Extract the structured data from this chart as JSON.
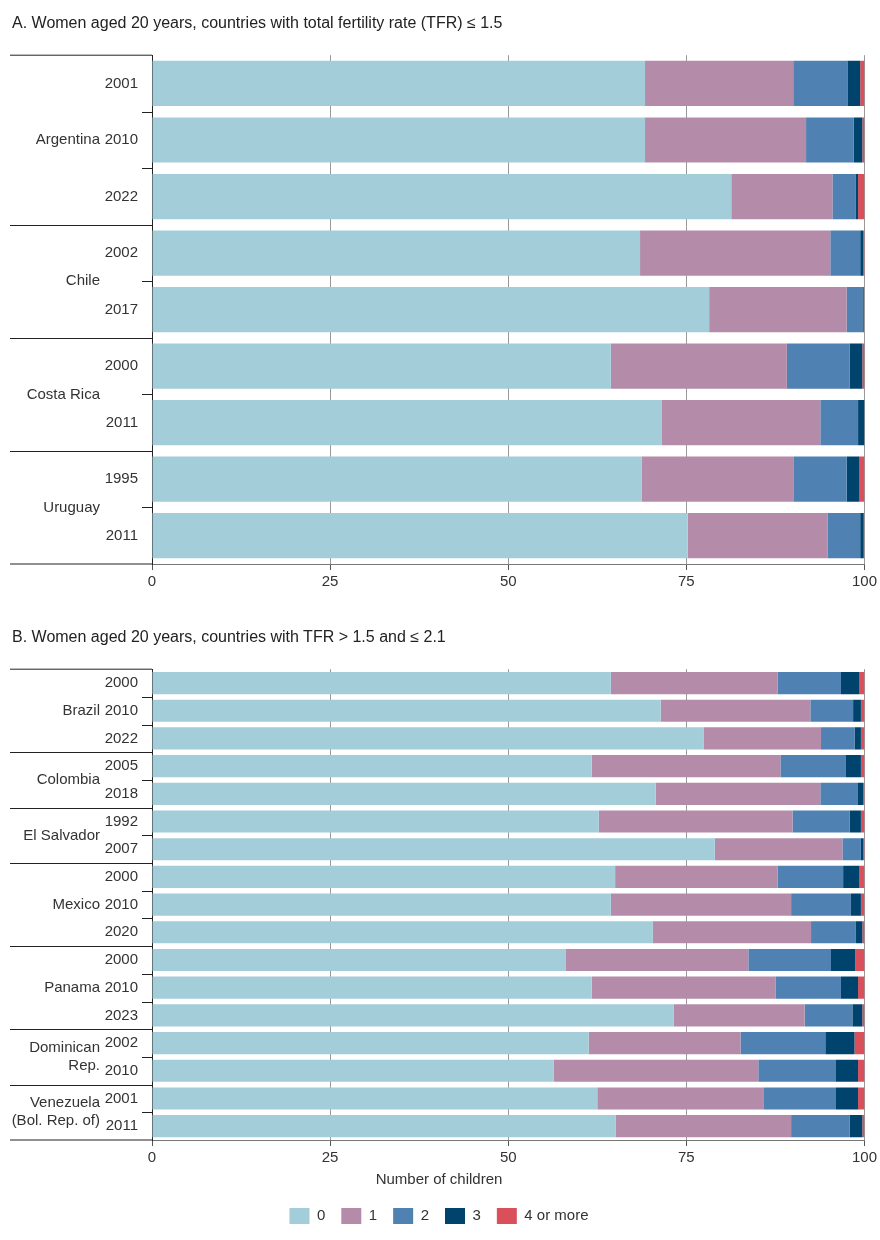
{
  "chart_data": [
    {
      "type": "bar",
      "orientation": "horizontal",
      "stacked": true,
      "title": "A. Women aged 20 years, countries with total fertility rate (TFR) ≤ 1.5",
      "categories": [
        "2001",
        "2010",
        "2022",
        "2002",
        "2017",
        "2000",
        "2011",
        "1995",
        "2011"
      ],
      "annotations": [
        "Argentina",
        "Chile",
        "Costa Rica",
        "Uruguay"
      ],
      "series": [
        {
          "color": "#a3cdd9",
          "values": [
            69.2,
            69.2,
            81.3,
            68.5,
            78.2,
            64.4,
            71.5,
            68.7,
            75.2
          ]
        },
        {
          "color": "#b48caa",
          "values": [
            20.8,
            22.6,
            14.2,
            26.7,
            19.3,
            24.7,
            22.3,
            21.4,
            19.6
          ]
        },
        {
          "color": "#4f81b3",
          "values": [
            7.6,
            6.7,
            3.3,
            4.2,
            2.2,
            8.8,
            5.3,
            7.4,
            4.6
          ]
        },
        {
          "color": "#00446e",
          "values": [
            1.8,
            1.2,
            0.3,
            0.4,
            0.2,
            1.8,
            0.9,
            1.8,
            0.5
          ]
        },
        {
          "color": "#d94f5a",
          "values": [
            0.6,
            0.3,
            0.9,
            0.2,
            null,
            0.3,
            0,
            0.7,
            null
          ]
        }
      ],
      "xlim": [
        0,
        100
      ],
      "xticks": [
        0,
        25,
        50,
        75,
        100
      ],
      "grid": "x"
    },
    {
      "type": "bar",
      "orientation": "horizontal",
      "stacked": true,
      "title": "B. Women aged 20 years, countries with TFR > 1.5 and ≤ 2.1",
      "categories": [
        "2000",
        "2010",
        "2022",
        "2005",
        "2018",
        "1992",
        "2007",
        "2000",
        "2010",
        "2020",
        "2000",
        "2010",
        "2023",
        "2002",
        "2010",
        "2001",
        "2011"
      ],
      "annotations": [
        "Brazil",
        "Colombia",
        "El Salvador",
        "Mexico",
        "Panama",
        "Dominican\nRep.",
        "Venezuela\n(Bol. Rep. of)"
      ],
      "series": [
        {
          "name": "0",
          "color": "#a3cdd9",
          "values": [
            64.4,
            71.4,
            77.4,
            61.7,
            70.7,
            62.7,
            79.0,
            65.0,
            64.4,
            70.3,
            58.1,
            61.7,
            73.2,
            61.3,
            56.4,
            62.5,
            65.1
          ]
        },
        {
          "name": "1",
          "color": "#b48caa",
          "values": [
            23.4,
            21.0,
            16.5,
            26.5,
            23.1,
            27.2,
            17.9,
            22.8,
            25.3,
            22.2,
            25.6,
            25.8,
            18.4,
            21.3,
            28.7,
            23.3,
            24.6
          ]
        },
        {
          "name": "2",
          "color": "#4f81b3",
          "values": [
            8.9,
            6.0,
            4.7,
            9.2,
            5.2,
            8.0,
            2.6,
            9.2,
            8.4,
            6.3,
            11.6,
            9.2,
            6.7,
            11.9,
            10.9,
            10.2,
            8.2
          ]
        },
        {
          "name": "3",
          "color": "#00446e",
          "values": [
            2.6,
            1.1,
            0.9,
            2.1,
            0.8,
            1.6,
            0.3,
            2.3,
            1.4,
            0.9,
            3.4,
            2.4,
            1.4,
            4.1,
            3.1,
            3.1,
            1.8
          ]
        },
        {
          "name": "4 or more",
          "color": "#d94f5a",
          "values": [
            0.7,
            0.5,
            0.5,
            0.5,
            0.2,
            0.5,
            0.2,
            0.7,
            0.5,
            0.3,
            1.3,
            0.9,
            0.3,
            1.4,
            0.9,
            0.9,
            0.3
          ]
        }
      ],
      "xlim": [
        0,
        100
      ],
      "xticks": [
        0,
        25,
        50,
        75,
        100
      ],
      "grid": "x",
      "legend": "bottom",
      "legend_title": "Number of children"
    }
  ]
}
